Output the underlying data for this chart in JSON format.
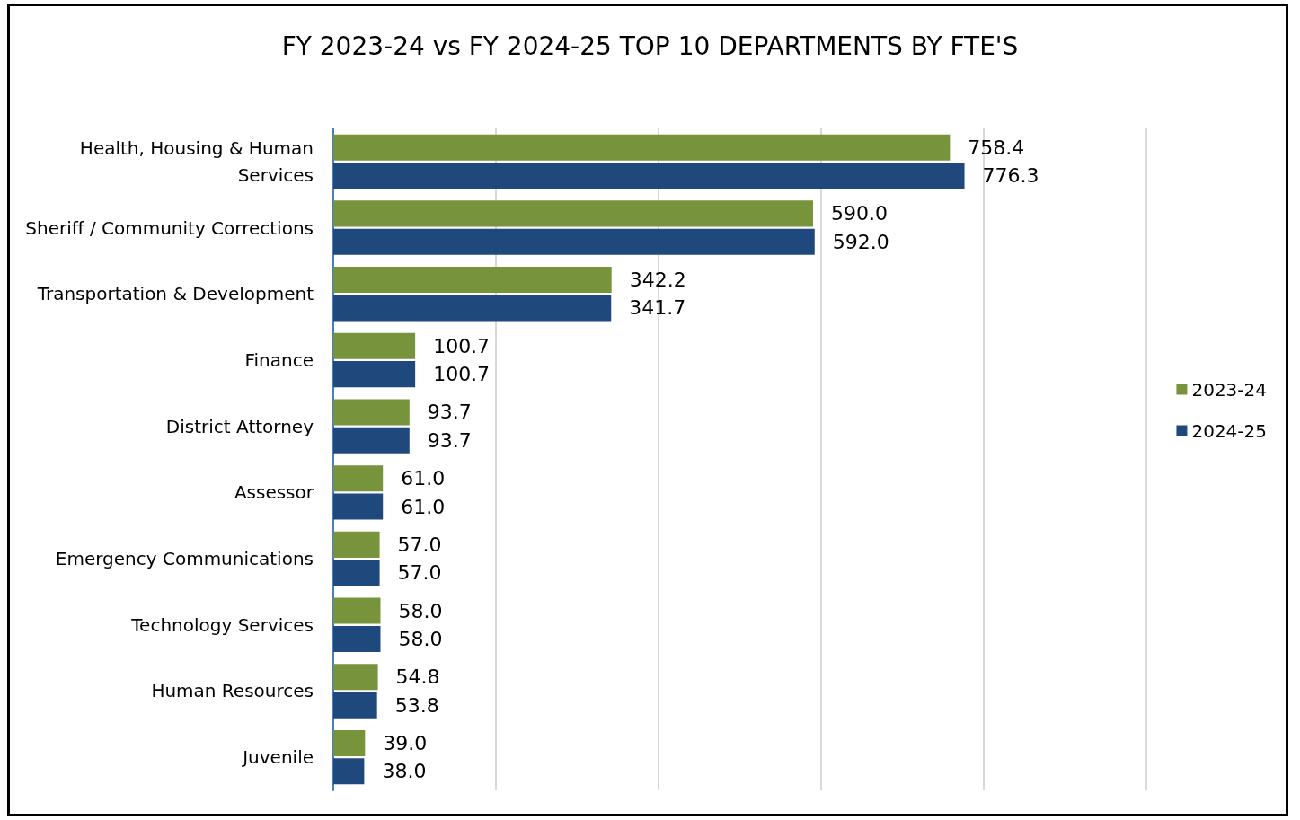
{
  "chart_data": {
    "type": "bar",
    "orientation": "horizontal",
    "title": "FY 2023-24 vs FY 2024-25 TOP 10 DEPARTMENTS BY FTE'S",
    "categories": [
      "Health, Housing & Human\nServices",
      "Sheriff / Community Corrections",
      "Transportation & Development",
      "Finance",
      "District Attorney",
      "Assessor",
      "Emergency Communications",
      "Technology Services",
      "Human Resources",
      "Juvenile"
    ],
    "series": [
      {
        "name": "2023-24",
        "color": "#77933c",
        "values": [
          758.4,
          590.0,
          342.2,
          100.7,
          93.7,
          61.0,
          57.0,
          58.0,
          54.8,
          39.0
        ],
        "value_labels": [
          "758.4",
          "590.0",
          "342.2",
          "100.7",
          "93.7",
          "61.0",
          "57.0",
          "58.0",
          "54.8",
          "39.0"
        ]
      },
      {
        "name": "2024-25",
        "color": "#1f497d",
        "values": [
          776.3,
          592.0,
          341.7,
          100.7,
          93.7,
          61.0,
          57.0,
          58.0,
          53.8,
          38.0
        ],
        "value_labels": [
          "776.3",
          "592.0",
          "341.7",
          "100.7",
          "93.7",
          "61.0",
          "57.0",
          "58.0",
          "53.8",
          "38.0"
        ]
      }
    ],
    "xlim": [
      0,
      1000
    ],
    "xticks": [
      {
        "value": 0,
        "label": null
      },
      {
        "value": 200,
        "label": null
      },
      {
        "value": 400,
        "label": null
      },
      {
        "value": 600,
        "label": null
      },
      {
        "value": 800,
        "label": null
      },
      {
        "value": 1000,
        "label": null
      }
    ],
    "tick_labels": "y",
    "grid": "x",
    "legend": "right"
  }
}
